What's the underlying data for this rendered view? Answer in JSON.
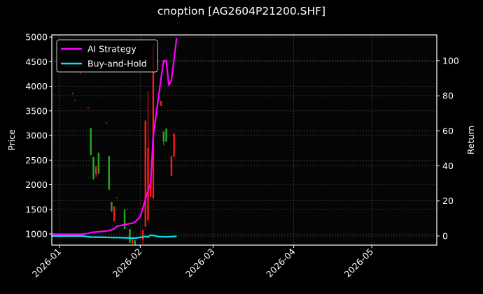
{
  "title": "cnoption [AG2604P21200.SHF]",
  "legend": [
    {
      "label": "AI Strategy",
      "color": "#ff00ff"
    },
    {
      "label": "Buy-and-Hold",
      "color": "#00e5ee"
    }
  ],
  "colors": {
    "background": "#000000",
    "axes_face": "#050505",
    "grid": "#555555",
    "up": "#22aa22",
    "down": "#ff1a1a",
    "text": "#ffffff"
  },
  "chart_data": {
    "type": "line",
    "title": "cnoption [AG2604P21200.SHF]",
    "xlabel": "",
    "ylabel": "Price",
    "y2label": "Return",
    "x_ticks": [
      "2026-01",
      "2026-02",
      "2026-03",
      "2026-04",
      "2026-05"
    ],
    "y_ticks": [
      1000,
      1500,
      2000,
      2500,
      3000,
      3500,
      4000,
      4500,
      5000
    ],
    "y2_ticks": [
      0,
      20,
      40,
      60,
      80,
      100
    ],
    "xlim": [
      "2025-12-29",
      "2026-05-26"
    ],
    "ylim": [
      773,
      5043
    ],
    "y2lim": [
      -5.2,
      114.7
    ],
    "grid": true,
    "legend_position": "upper left",
    "candles": [
      {
        "date": "2026-01-06",
        "open": 3860,
        "close": 3850,
        "high": 3870,
        "low": 3840
      },
      {
        "date": "2026-01-07",
        "open": 3720,
        "close": 3710,
        "high": 3725,
        "low": 3705
      },
      {
        "date": "2026-01-09",
        "open": 4270,
        "close": 4260,
        "high": 4275,
        "low": 4255
      },
      {
        "date": "2026-01-12",
        "open": 3560,
        "close": 3550,
        "high": 3565,
        "low": 3545
      },
      {
        "date": "2026-01-13",
        "open": 2600,
        "close": 3150,
        "high": 3150,
        "low": 2600
      },
      {
        "date": "2026-01-14",
        "open": 2120,
        "close": 2560,
        "high": 2560,
        "low": 2100
      },
      {
        "date": "2026-01-15",
        "open": 2370,
        "close": 2220,
        "high": 2380,
        "low": 2150
      },
      {
        "date": "2026-01-16",
        "open": 2230,
        "close": 2650,
        "high": 2650,
        "low": 2220
      },
      {
        "date": "2026-01-19",
        "open": 3260,
        "close": 3250,
        "high": 3265,
        "low": 3245
      },
      {
        "date": "2026-01-20",
        "open": 1900,
        "close": 2580,
        "high": 2580,
        "low": 1890
      },
      {
        "date": "2026-01-21",
        "open": 1460,
        "close": 1650,
        "high": 1650,
        "low": 1450
      },
      {
        "date": "2026-01-22",
        "open": 1560,
        "close": 1270,
        "high": 1560,
        "low": 1250
      },
      {
        "date": "2026-01-23",
        "open": 1740,
        "close": 1730,
        "high": 1745,
        "low": 1725
      },
      {
        "date": "2026-01-26",
        "open": 1100,
        "close": 1500,
        "high": 1500,
        "low": 1100
      },
      {
        "date": "2026-01-27",
        "open": 1510,
        "close": 1500,
        "high": 1515,
        "low": 1495
      },
      {
        "date": "2026-01-28",
        "open": 820,
        "close": 1100,
        "high": 1100,
        "low": 820
      },
      {
        "date": "2026-01-29",
        "open": 900,
        "close": 810,
        "high": 900,
        "low": 790
      },
      {
        "date": "2026-01-30",
        "open": 780,
        "close": 870,
        "high": 870,
        "low": 775
      },
      {
        "date": "2026-02-02",
        "open": 1080,
        "close": 880,
        "high": 1090,
        "low": 800
      },
      {
        "date": "2026-02-03",
        "open": 3300,
        "close": 1150,
        "high": 3320,
        "low": 1140
      },
      {
        "date": "2026-02-04",
        "open": 2750,
        "close": 1280,
        "high": 3900,
        "low": 1260
      },
      {
        "date": "2026-02-05",
        "open": 2050,
        "close": 1760,
        "high": 2060,
        "low": 1750
      },
      {
        "date": "2026-02-06",
        "open": 4850,
        "close": 1720,
        "high": 4850,
        "low": 1720
      },
      {
        "date": "2026-02-09",
        "open": 3700,
        "close": 3600,
        "high": 3700,
        "low": 3600
      },
      {
        "date": "2026-02-10",
        "open": 2880,
        "close": 3080,
        "high": 3080,
        "low": 2800
      },
      {
        "date": "2026-02-11",
        "open": 2880,
        "close": 3140,
        "high": 3140,
        "low": 2870
      },
      {
        "date": "2026-02-13",
        "open": 2580,
        "close": 2180,
        "high": 2590,
        "low": 2170
      },
      {
        "date": "2026-02-14",
        "open": 3040,
        "close": 2570,
        "high": 3050,
        "low": 2560
      }
    ],
    "series": [
      {
        "name": "AI Strategy",
        "axis": "right",
        "color": "#ff00ff",
        "points": [
          [
            "2025-12-29",
            1.0
          ],
          [
            "2026-01-05",
            1.0
          ],
          [
            "2026-01-09",
            1.0
          ],
          [
            "2026-01-12",
            1.5
          ],
          [
            "2026-01-13",
            2.0
          ],
          [
            "2026-01-15",
            2.3
          ],
          [
            "2026-01-19",
            2.8
          ],
          [
            "2026-01-20",
            3.2
          ],
          [
            "2026-01-22",
            4.0
          ],
          [
            "2026-01-23",
            5.5
          ],
          [
            "2026-01-26",
            6.5
          ],
          [
            "2026-01-29",
            7.3
          ],
          [
            "2026-01-30",
            8.0
          ],
          [
            "2026-02-01",
            11.0
          ],
          [
            "2026-02-03",
            21.0
          ],
          [
            "2026-02-04",
            26.0
          ],
          [
            "2026-02-05",
            30.0
          ],
          [
            "2026-02-06",
            57.0
          ],
          [
            "2026-02-09",
            90.0
          ],
          [
            "2026-02-10",
            100.0
          ],
          [
            "2026-02-11",
            100.0
          ],
          [
            "2026-02-12",
            86.0
          ],
          [
            "2026-02-13",
            89.0
          ],
          [
            "2026-02-15",
            113.0
          ]
        ]
      },
      {
        "name": "Buy-and-Hold",
        "axis": "right",
        "color": "#00e5ee",
        "points": [
          [
            "2025-12-29",
            0.0
          ],
          [
            "2026-01-10",
            0.0
          ],
          [
            "2026-01-13",
            -0.6
          ],
          [
            "2026-01-20",
            -0.8
          ],
          [
            "2026-01-26",
            -1.0
          ],
          [
            "2026-01-30",
            -1.2
          ],
          [
            "2026-02-02",
            -0.6
          ],
          [
            "2026-02-03",
            -0.2
          ],
          [
            "2026-02-04",
            -0.6
          ],
          [
            "2026-02-05",
            0.5
          ],
          [
            "2026-02-06",
            0.3
          ],
          [
            "2026-02-08",
            -0.3
          ],
          [
            "2026-02-11",
            -0.5
          ],
          [
            "2026-02-15",
            -0.2
          ]
        ]
      }
    ]
  }
}
